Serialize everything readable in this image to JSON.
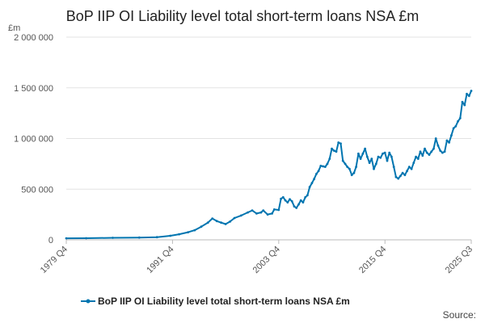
{
  "chart_data": {
    "type": "line",
    "title": "BoP IIP OI Liability level total short-term loans NSA £m",
    "ylabel": "£m",
    "xlabel": "",
    "ylim": [
      0,
      2000000
    ],
    "y_ticks": [
      0,
      500000,
      1000000,
      1500000,
      2000000
    ],
    "y_tick_labels": [
      "0",
      "500 000",
      "1 000 000",
      "1 500 000",
      "2 000 000"
    ],
    "x_range": [
      1979.75,
      2025.5
    ],
    "x_ticks": [
      1979.75,
      1991.75,
      2003.75,
      2015.75,
      2025.5
    ],
    "x_tick_labels": [
      "1979 Q4",
      "1991 Q4",
      "2003 Q4",
      "2015 Q4",
      "2025 Q3"
    ],
    "grid": "horizontal",
    "legend_position": "bottom",
    "series": [
      {
        "name": "BoP IIP OI Liability level total short-term loans NSA £m",
        "color": "#0075b0",
        "points": [
          [
            1979.75,
            15000
          ],
          [
            1982.0,
            16000
          ],
          [
            1985.0,
            20000
          ],
          [
            1988.0,
            22000
          ],
          [
            1990.0,
            26000
          ],
          [
            1991.5,
            40000
          ],
          [
            1992.5,
            55000
          ],
          [
            1993.5,
            75000
          ],
          [
            1994.25,
            95000
          ],
          [
            1995.0,
            130000
          ],
          [
            1995.75,
            170000
          ],
          [
            1996.25,
            210000
          ],
          [
            1996.75,
            185000
          ],
          [
            1997.25,
            170000
          ],
          [
            1997.75,
            155000
          ],
          [
            1998.25,
            180000
          ],
          [
            1998.75,
            215000
          ],
          [
            1999.5,
            240000
          ],
          [
            2000.25,
            270000
          ],
          [
            2000.75,
            290000
          ],
          [
            2001.25,
            260000
          ],
          [
            2001.75,
            270000
          ],
          [
            2002.0,
            290000
          ],
          [
            2002.5,
            250000
          ],
          [
            2003.0,
            260000
          ],
          [
            2003.25,
            300000
          ],
          [
            2003.75,
            295000
          ],
          [
            2004.0,
            405000
          ],
          [
            2004.25,
            420000
          ],
          [
            2004.5,
            390000
          ],
          [
            2004.75,
            370000
          ],
          [
            2005.0,
            400000
          ],
          [
            2005.25,
            380000
          ],
          [
            2005.5,
            330000
          ],
          [
            2005.75,
            315000
          ],
          [
            2006.0,
            350000
          ],
          [
            2006.25,
            390000
          ],
          [
            2006.5,
            370000
          ],
          [
            2006.75,
            420000
          ],
          [
            2007.0,
            440000
          ],
          [
            2007.25,
            520000
          ],
          [
            2007.5,
            560000
          ],
          [
            2007.75,
            600000
          ],
          [
            2008.0,
            650000
          ],
          [
            2008.25,
            680000
          ],
          [
            2008.5,
            730000
          ],
          [
            2008.75,
            725000
          ],
          [
            2009.0,
            720000
          ],
          [
            2009.25,
            750000
          ],
          [
            2009.5,
            800000
          ],
          [
            2009.75,
            900000
          ],
          [
            2010.0,
            880000
          ],
          [
            2010.25,
            870000
          ],
          [
            2010.5,
            960000
          ],
          [
            2010.75,
            950000
          ],
          [
            2011.0,
            780000
          ],
          [
            2011.25,
            750000
          ],
          [
            2011.5,
            720000
          ],
          [
            2011.75,
            700000
          ],
          [
            2012.0,
            640000
          ],
          [
            2012.25,
            660000
          ],
          [
            2012.5,
            720000
          ],
          [
            2012.75,
            850000
          ],
          [
            2013.0,
            800000
          ],
          [
            2013.25,
            850000
          ],
          [
            2013.5,
            900000
          ],
          [
            2013.75,
            820000
          ],
          [
            2014.0,
            760000
          ],
          [
            2014.25,
            800000
          ],
          [
            2014.5,
            700000
          ],
          [
            2014.75,
            750000
          ],
          [
            2015.0,
            820000
          ],
          [
            2015.25,
            810000
          ],
          [
            2015.5,
            850000
          ],
          [
            2015.75,
            860000
          ],
          [
            2016.0,
            780000
          ],
          [
            2016.25,
            860000
          ],
          [
            2016.5,
            820000
          ],
          [
            2016.75,
            720000
          ],
          [
            2017.0,
            620000
          ],
          [
            2017.25,
            605000
          ],
          [
            2017.5,
            630000
          ],
          [
            2017.75,
            660000
          ],
          [
            2018.0,
            640000
          ],
          [
            2018.25,
            680000
          ],
          [
            2018.5,
            720000
          ],
          [
            2018.75,
            700000
          ],
          [
            2019.0,
            760000
          ],
          [
            2019.25,
            820000
          ],
          [
            2019.5,
            800000
          ],
          [
            2019.75,
            870000
          ],
          [
            2020.0,
            830000
          ],
          [
            2020.25,
            900000
          ],
          [
            2020.5,
            860000
          ],
          [
            2020.75,
            840000
          ],
          [
            2021.0,
            870000
          ],
          [
            2021.25,
            900000
          ],
          [
            2021.5,
            1000000
          ],
          [
            2021.75,
            930000
          ],
          [
            2022.0,
            880000
          ],
          [
            2022.25,
            860000
          ],
          [
            2022.5,
            870000
          ],
          [
            2022.75,
            980000
          ],
          [
            2023.0,
            960000
          ],
          [
            2023.25,
            1030000
          ],
          [
            2023.5,
            1100000
          ],
          [
            2023.75,
            1120000
          ],
          [
            2024.0,
            1170000
          ],
          [
            2024.25,
            1200000
          ],
          [
            2024.5,
            1360000
          ],
          [
            2024.75,
            1330000
          ],
          [
            2025.0,
            1440000
          ],
          [
            2025.25,
            1420000
          ],
          [
            2025.5,
            1470000
          ]
        ]
      }
    ],
    "source_label": "Source:"
  }
}
